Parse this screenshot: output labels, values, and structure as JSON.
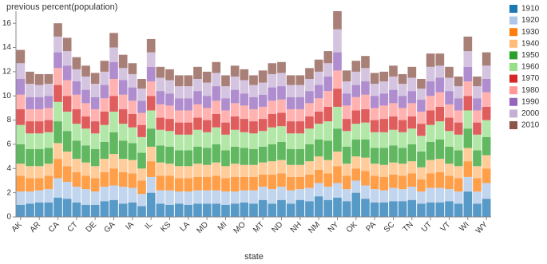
{
  "chart_data": {
    "type": "stacked_bar",
    "y_label": "previous percent(population)",
    "x_label": "state",
    "categories": [
      "AK",
      null,
      "AR",
      null,
      "CA",
      null,
      "CT",
      null,
      "DE",
      null,
      "GA",
      null,
      "IA",
      null,
      "IL",
      null,
      "KS",
      null,
      "LA",
      null,
      "MD",
      null,
      "MI",
      null,
      "MO",
      null,
      "MT",
      null,
      "ND",
      null,
      "NH",
      null,
      "NM",
      null,
      "NY",
      null,
      "OK",
      null,
      "PA",
      null,
      "SC",
      null,
      "TN",
      null,
      "UT",
      null,
      "VT",
      null,
      "WI",
      null,
      "WY"
    ],
    "ylim": [
      0,
      17
    ],
    "yticks": [
      0,
      2,
      4,
      6,
      8,
      10,
      12,
      14,
      16
    ],
    "legend": "right",
    "series": [
      {
        "name": "1910",
        "color": "#1f77b4",
        "values": [
          1.0,
          1.1,
          1.2,
          1.2,
          1.6,
          1.5,
          1.2,
          1.0,
          1.0,
          1.3,
          1.4,
          1.1,
          1.2,
          0.9,
          2.0,
          1.1,
          1.0,
          1.1,
          1.0,
          1.1,
          1.1,
          1.1,
          1.0,
          1.1,
          1.2,
          1.1,
          1.4,
          1.1,
          1.4,
          1.1,
          1.4,
          1.3,
          1.7,
          1.4,
          1.6,
          1.3,
          2.0,
          1.5,
          1.2,
          1.2,
          1.3,
          1.3,
          1.4,
          1.1,
          1.2,
          1.2,
          1.3,
          1.1,
          2.1,
          1.1,
          1.5
        ]
      },
      {
        "name": "1920",
        "color": "#aec7e8",
        "values": [
          1.1,
          1.0,
          1.0,
          1.1,
          1.6,
          1.4,
          1.3,
          1.3,
          1.1,
          1.2,
          1.2,
          1.4,
          1.2,
          1.0,
          1.3,
          1.1,
          1.2,
          1.0,
          1.1,
          1.1,
          1.1,
          1.1,
          1.1,
          1.0,
          1.0,
          1.1,
          1.1,
          1.2,
          1.1,
          1.1,
          0.9,
          1.1,
          1.1,
          1.1,
          1.2,
          1.0,
          1.0,
          1.1,
          1.1,
          1.0,
          1.1,
          1.0,
          1.1,
          1.0,
          1.2,
          1.2,
          1.0,
          1.0,
          1.2,
          1.0,
          1.3
        ]
      },
      {
        "name": "1930",
        "color": "#ff7f0e",
        "values": [
          1.3,
          1.1,
          1.0,
          1.1,
          1.6,
          1.3,
          1.2,
          1.1,
          1.1,
          1.2,
          1.4,
          1.2,
          1.2,
          1.1,
          1.3,
          1.2,
          1.2,
          1.1,
          1.1,
          1.1,
          1.1,
          1.2,
          1.1,
          1.2,
          1.1,
          1.1,
          1.0,
          1.2,
          1.1,
          1.1,
          1.0,
          1.1,
          1.1,
          1.1,
          1.4,
          1.1,
          1.0,
          1.2,
          1.1,
          1.1,
          1.1,
          1.1,
          1.1,
          1.0,
          1.2,
          1.3,
          1.1,
          1.1,
          1.3,
          1.1,
          1.2
        ]
      },
      {
        "name": "1940",
        "color": "#ffbb78",
        "values": [
          1.0,
          1.0,
          1.0,
          1.0,
          1.3,
          1.2,
          1.1,
          1.1,
          1.0,
          1.1,
          1.2,
          1.1,
          1.1,
          1.0,
          1.2,
          1.1,
          1.0,
          1.0,
          1.0,
          1.1,
          1.0,
          1.1,
          1.0,
          1.1,
          1.0,
          1.0,
          1.0,
          1.1,
          1.1,
          1.0,
          1.0,
          1.1,
          1.1,
          1.1,
          1.2,
          1.0,
          1.0,
          1.1,
          1.0,
          1.0,
          1.0,
          1.0,
          1.0,
          1.0,
          1.1,
          1.1,
          1.0,
          1.0,
          1.1,
          1.0,
          1.1
        ]
      },
      {
        "name": "1950",
        "color": "#2ca02c",
        "values": [
          1.6,
          1.4,
          1.4,
          1.3,
          1.8,
          1.7,
          1.5,
          1.4,
          1.4,
          1.4,
          1.8,
          1.5,
          1.4,
          1.3,
          1.5,
          1.4,
          1.4,
          1.3,
          1.3,
          1.4,
          1.4,
          1.5,
          1.3,
          1.4,
          1.4,
          1.3,
          1.3,
          1.4,
          1.5,
          1.3,
          1.3,
          1.4,
          1.4,
          1.6,
          1.9,
          1.4,
          1.4,
          1.5,
          1.3,
          1.4,
          1.4,
          1.3,
          1.4,
          1.3,
          1.5,
          1.6,
          1.4,
          1.3,
          1.6,
          1.3,
          1.5
        ]
      },
      {
        "name": "1960",
        "color": "#98df8a",
        "values": [
          1.6,
          1.3,
          1.3,
          1.3,
          1.6,
          1.6,
          1.4,
          1.4,
          1.3,
          1.4,
          1.7,
          1.4,
          1.3,
          1.3,
          1.5,
          1.3,
          1.3,
          1.3,
          1.3,
          1.4,
          1.3,
          1.4,
          1.3,
          1.4,
          1.3,
          1.3,
          1.3,
          1.4,
          1.3,
          1.3,
          1.3,
          1.3,
          1.3,
          1.6,
          1.8,
          1.3,
          1.3,
          1.4,
          1.3,
          1.3,
          1.3,
          1.3,
          1.3,
          1.3,
          1.4,
          1.5,
          1.3,
          1.3,
          1.5,
          1.3,
          1.4
        ]
      },
      {
        "name": "1970",
        "color": "#d62728",
        "values": [
          1.3,
          1.0,
          1.0,
          1.0,
          1.4,
          1.3,
          1.2,
          1.0,
          1.0,
          1.1,
          1.3,
          1.2,
          1.1,
          1.0,
          1.2,
          1.0,
          1.0,
          1.0,
          1.0,
          1.0,
          1.0,
          1.1,
          1.0,
          1.1,
          1.1,
          1.0,
          1.0,
          1.1,
          1.1,
          1.0,
          1.0,
          1.0,
          1.0,
          1.2,
          1.5,
          1.0,
          1.1,
          1.1,
          1.0,
          1.1,
          1.1,
          1.0,
          1.0,
          1.0,
          1.2,
          1.2,
          1.1,
          1.0,
          1.2,
          1.0,
          1.1
        ]
      },
      {
        "name": "1980",
        "color": "#ff9896",
        "values": [
          1.2,
          1.0,
          1.0,
          1.0,
          1.4,
          1.3,
          1.2,
          1.1,
          1.0,
          1.1,
          1.4,
          1.2,
          1.1,
          1.0,
          1.2,
          1.1,
          1.1,
          1.0,
          1.0,
          1.1,
          1.0,
          1.1,
          1.0,
          1.1,
          1.1,
          1.0,
          1.0,
          1.1,
          1.1,
          1.0,
          1.0,
          1.1,
          1.1,
          1.3,
          1.5,
          1.1,
          1.1,
          1.2,
          1.0,
          1.1,
          1.1,
          1.0,
          1.1,
          1.0,
          1.2,
          1.2,
          1.1,
          1.0,
          1.2,
          1.0,
          1.2
        ]
      },
      {
        "name": "1990",
        "color": "#9467bd",
        "values": [
          1.3,
          1.0,
          1.0,
          1.0,
          1.3,
          1.2,
          1.1,
          1.1,
          1.0,
          1.1,
          1.4,
          1.2,
          1.1,
          1.0,
          1.2,
          1.1,
          1.0,
          1.0,
          1.0,
          1.1,
          1.0,
          1.2,
          1.0,
          1.1,
          1.0,
          1.0,
          1.0,
          1.1,
          1.1,
          1.0,
          1.0,
          1.0,
          1.1,
          1.2,
          1.5,
          1.0,
          1.0,
          1.1,
          1.0,
          1.0,
          1.1,
          1.0,
          1.0,
          1.0,
          1.2,
          1.2,
          1.1,
          1.0,
          1.2,
          1.0,
          1.1
        ]
      },
      {
        "name": "2000",
        "color": "#c5b0d5",
        "values": [
          1.3,
          1.1,
          1.0,
          1.0,
          1.3,
          1.2,
          1.0,
          1.1,
          1.1,
          1.1,
          1.2,
          1.0,
          1.1,
          1.0,
          1.2,
          1.1,
          1.1,
          1.0,
          1.0,
          1.0,
          1.1,
          1.1,
          1.0,
          1.1,
          1.1,
          1.0,
          1.0,
          1.1,
          1.1,
          1.0,
          1.0,
          1.0,
          1.1,
          1.1,
          1.9,
          1.0,
          1.1,
          1.1,
          1.0,
          1.0,
          1.1,
          1.0,
          1.1,
          0.9,
          1.2,
          1.0,
          1.1,
          1.0,
          1.3,
          1.0,
          1.1
        ]
      },
      {
        "name": "2010",
        "color": "#8c564b",
        "values": [
          1.1,
          1.0,
          0.9,
          0.8,
          1.1,
          1.1,
          1.0,
          0.9,
          0.9,
          0.9,
          1.2,
          1.1,
          0.9,
          0.8,
          1.1,
          0.9,
          0.9,
          0.9,
          0.9,
          1.0,
          0.9,
          0.9,
          0.9,
          0.9,
          0.9,
          0.8,
          1.0,
          0.9,
          0.9,
          0.8,
          0.8,
          0.9,
          1.0,
          1.0,
          1.5,
          0.9,
          0.9,
          1.0,
          0.9,
          0.8,
          0.9,
          0.8,
          0.9,
          0.8,
          1.1,
          1.0,
          0.9,
          0.8,
          1.2,
          0.8,
          1.1
        ]
      }
    ]
  }
}
